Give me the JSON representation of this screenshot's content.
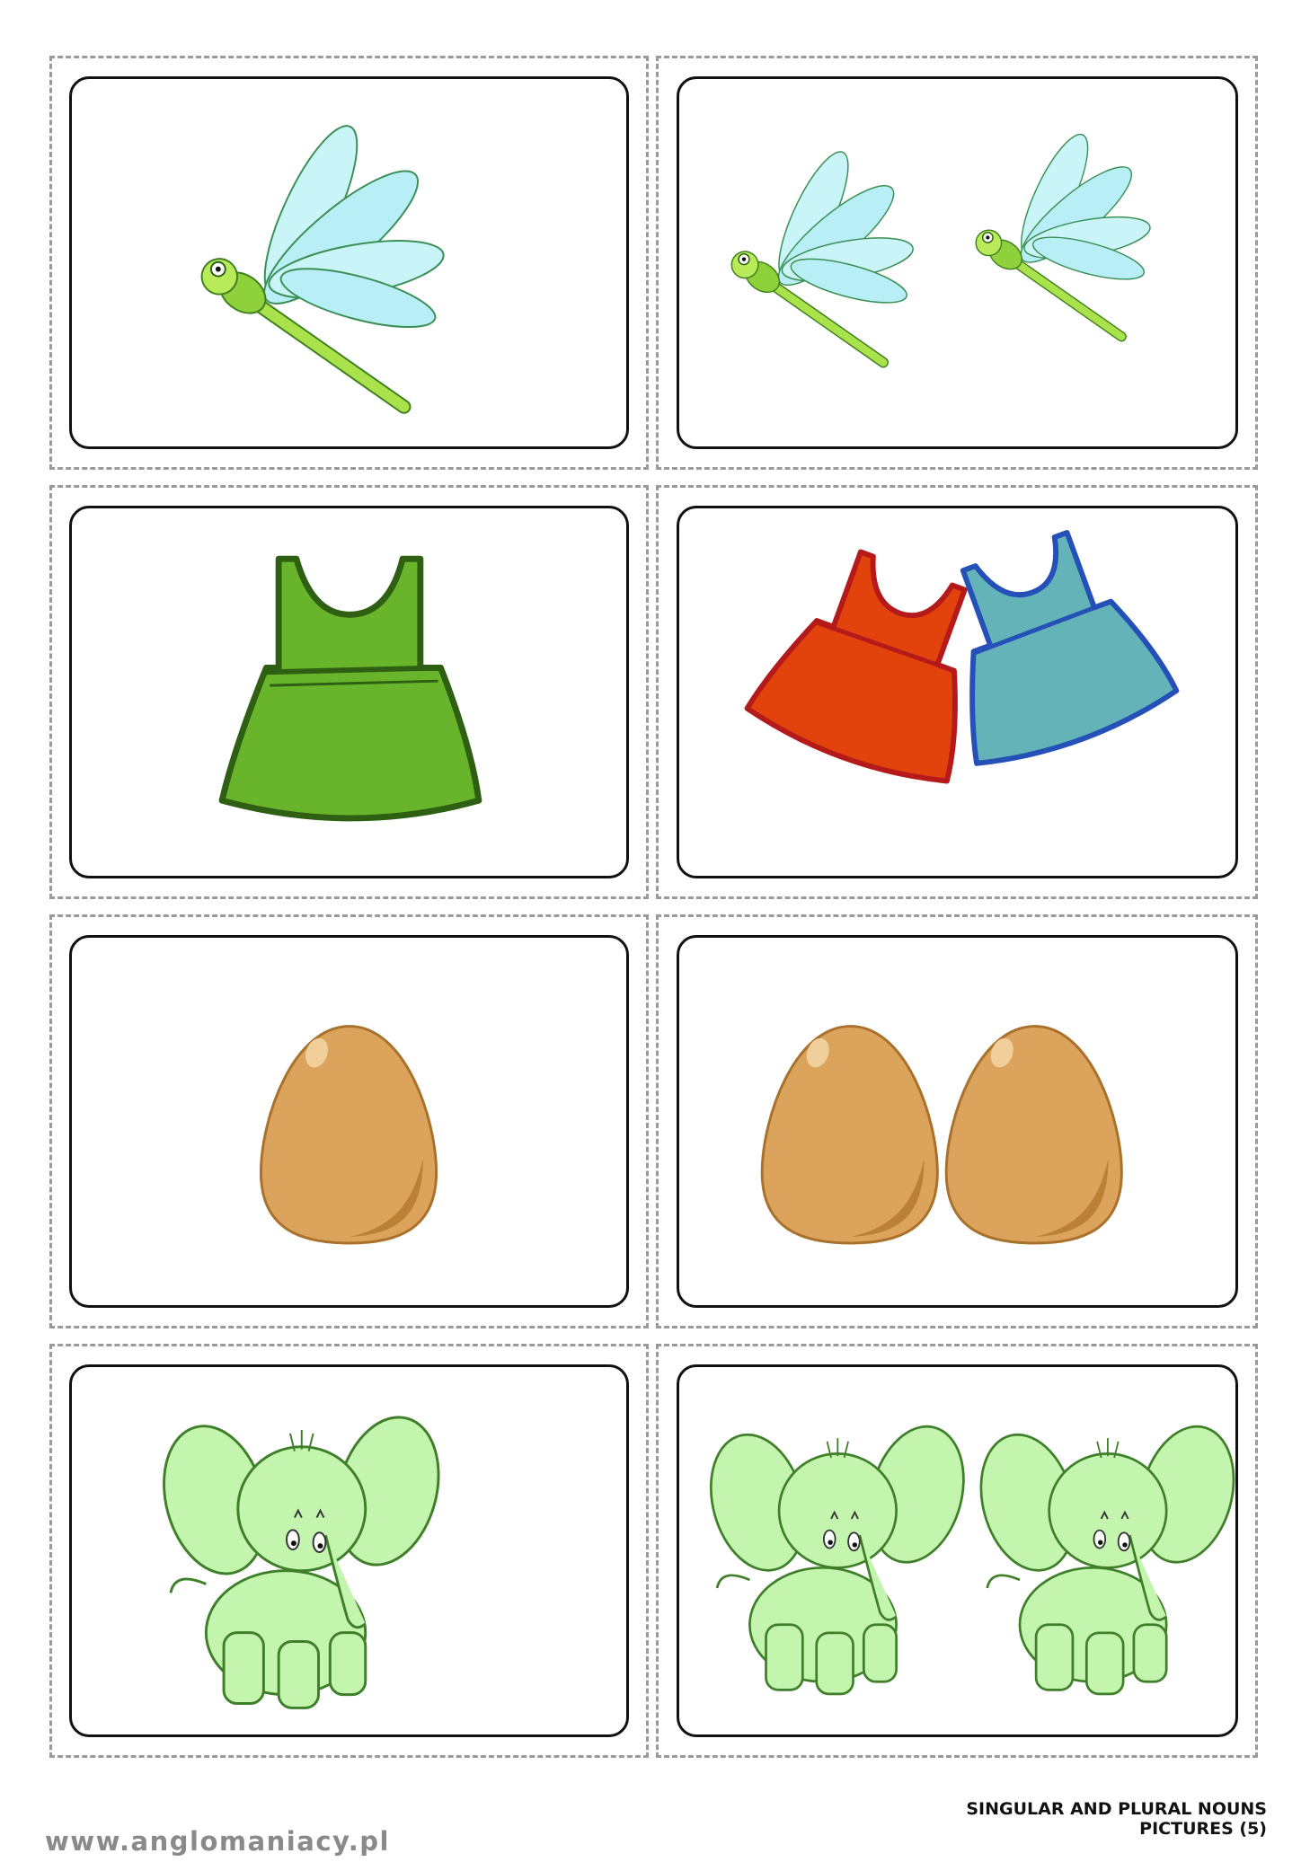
{
  "footer": {
    "site_url": "www.anglomaniacy.pl",
    "title_line1": "SINGULAR AND PLURAL NOUNS",
    "title_line2": "PICTURES (5)"
  },
  "cards": [
    {
      "row": 1,
      "side": "singular",
      "subject": "dragonfly",
      "count": 1
    },
    {
      "row": 1,
      "side": "plural",
      "subject": "dragonfly",
      "count": 2
    },
    {
      "row": 2,
      "side": "singular",
      "subject": "dress",
      "count": 1
    },
    {
      "row": 2,
      "side": "plural",
      "subject": "dress",
      "count": 2
    },
    {
      "row": 3,
      "side": "singular",
      "subject": "egg",
      "count": 1
    },
    {
      "row": 3,
      "side": "plural",
      "subject": "egg",
      "count": 2
    },
    {
      "row": 4,
      "side": "singular",
      "subject": "elephant",
      "count": 1
    },
    {
      "row": 4,
      "side": "plural",
      "subject": "elephant",
      "count": 2
    }
  ],
  "colors": {
    "dragonfly_wing": "#c9f4f8",
    "dragonfly_body": "#a9e24a",
    "dress_green": "#68b52c",
    "dress_red": "#e2430d",
    "dress_blue": "#64b3b8",
    "egg": "#dba35b",
    "elephant": "#c4f5ae",
    "cut_line": "#9a9a9a"
  }
}
